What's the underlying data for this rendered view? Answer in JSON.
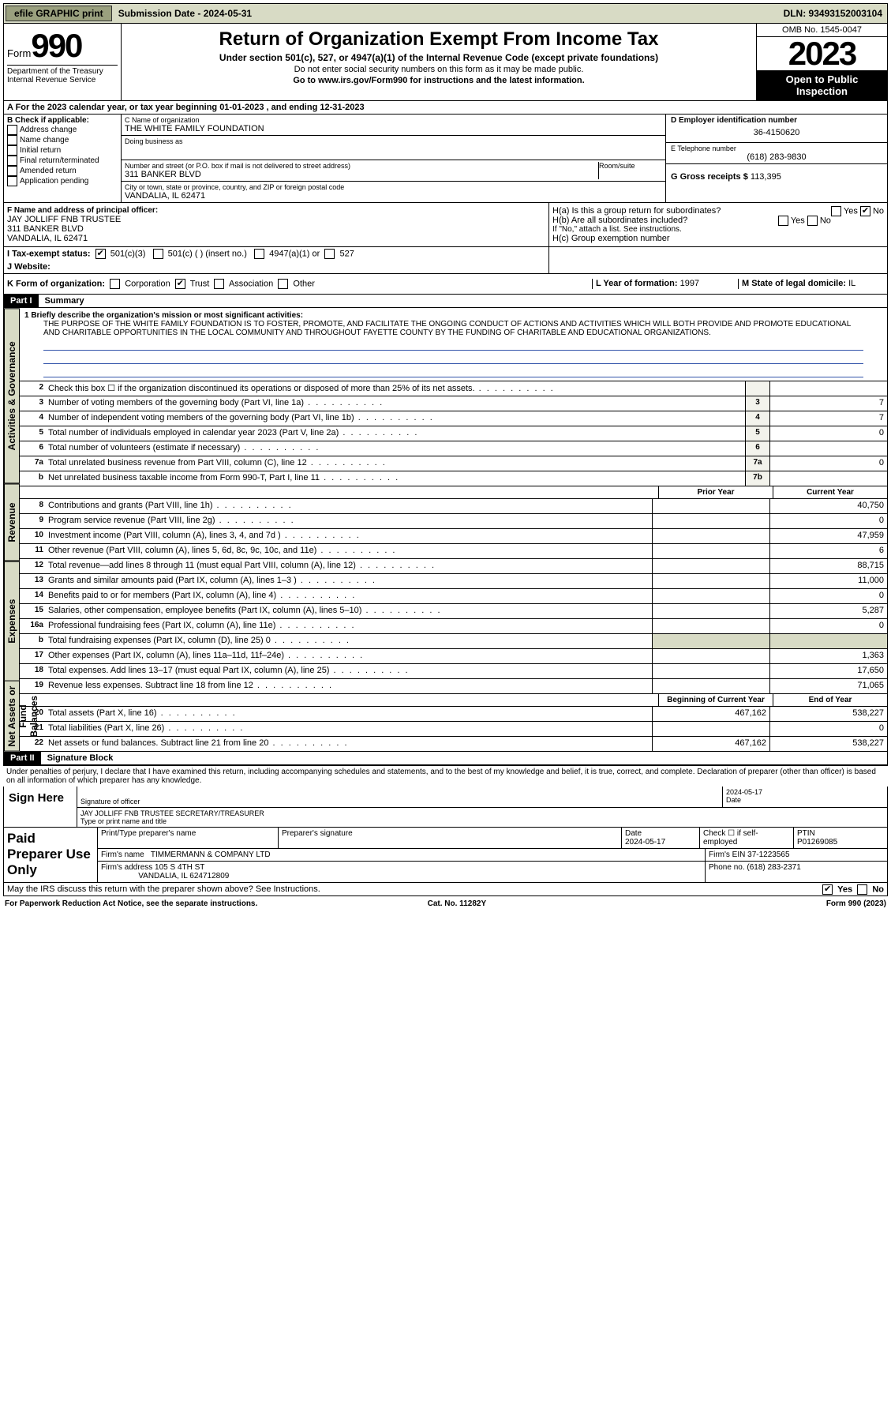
{
  "topbar": {
    "efile": "efile GRAPHIC print",
    "sub_label": "Submission Date - 2024-05-31",
    "dln": "DLN: 93493152003104"
  },
  "header": {
    "form_word": "Form",
    "form_num": "990",
    "title": "Return of Organization Exempt From Income Tax",
    "sub1": "Under section 501(c), 527, or 4947(a)(1) of the Internal Revenue Code (except private foundations)",
    "sub2": "Do not enter social security numbers on this form as it may be made public.",
    "sub3": "Go to www.irs.gov/Form990 for instructions and the latest information.",
    "dept": "Department of the Treasury\nInternal Revenue Service",
    "omb": "OMB No. 1545-0047",
    "year": "2023",
    "inspect": "Open to Public Inspection"
  },
  "sectionA": "A  For the 2023 calendar year, or tax year beginning 01-01-2023   , and ending 12-31-2023",
  "colB": {
    "title": "B Check if applicable:",
    "opts": [
      "Address change",
      "Name change",
      "Initial return",
      "Final return/terminated",
      "Amended return",
      "Application pending"
    ]
  },
  "colC": {
    "name_lbl": "C Name of organization",
    "name": "THE WHITE FAMILY FOUNDATION",
    "dba_lbl": "Doing business as",
    "addr_lbl": "Number and street (or P.O. box if mail is not delivered to street address)",
    "room_lbl": "Room/suite",
    "addr": "311 BANKER BLVD",
    "city_lbl": "City or town, state or province, country, and ZIP or foreign postal code",
    "city": "VANDALIA, IL  62471"
  },
  "colD": {
    "ein_lbl": "D Employer identification number",
    "ein": "36-4150620",
    "tel_lbl": "E Telephone number",
    "tel": "(618) 283-9830",
    "gross_lbl": "G Gross receipts $",
    "gross": "113,395"
  },
  "rowF": {
    "lbl": "F Name and address of principal officer:",
    "name": "JAY JOLLIFF FNB TRUSTEE",
    "addr": "311 BANKER BLVD",
    "city": "VANDALIA, IL  62471"
  },
  "rowH": {
    "ha": "H(a)  Is this a group return for subordinates?",
    "hb": "H(b)  Are all subordinates included?",
    "hb_note": "If \"No,\" attach a list. See instructions.",
    "hc": "H(c)  Group exemption number ",
    "yes": "Yes",
    "no": "No"
  },
  "rowI": {
    "lbl": "I   Tax-exempt status:",
    "o1": "501(c)(3)",
    "o2": "501(c) (   ) (insert no.)",
    "o3": "4947(a)(1) or",
    "o4": "527"
  },
  "rowJ": {
    "lbl": "J   Website:",
    "val": ""
  },
  "rowK": {
    "lbl": "K Form of organization:",
    "o1": "Corporation",
    "o2": "Trust",
    "o3": "Association",
    "o4": "Other",
    "l_lbl": "L Year of formation:",
    "l_val": "1997",
    "m_lbl": "M State of legal domicile:",
    "m_val": "IL"
  },
  "part1": {
    "hdr": "Part I",
    "title": "Summary"
  },
  "mission": {
    "lbl": "1   Briefly describe the organization's mission or most significant activities:",
    "text": "THE PURPOSE OF THE WHITE FAMILY FOUNDATION IS TO FOSTER, PROMOTE, AND FACILITATE THE ONGOING CONDUCT OF ACTIONS AND ACTIVITIES WHICH WILL BOTH PROVIDE AND PROMOTE EDUCATIONAL AND CHARITABLE OPPORTUNITIES IN THE LOCAL COMMUNITY AND THROUGHOUT FAYETTE COUNTY BY THE FUNDING OF CHARITABLE AND EDUCATIONAL ORGANIZATIONS."
  },
  "lines_gov": [
    {
      "n": "2",
      "d": "Check this box ☐  if the organization discontinued its operations or disposed of more than 25% of its net assets.",
      "box": "",
      "a": ""
    },
    {
      "n": "3",
      "d": "Number of voting members of the governing body (Part VI, line 1a)",
      "box": "3",
      "a": "7"
    },
    {
      "n": "4",
      "d": "Number of independent voting members of the governing body (Part VI, line 1b)",
      "box": "4",
      "a": "7"
    },
    {
      "n": "5",
      "d": "Total number of individuals employed in calendar year 2023 (Part V, line 2a)",
      "box": "5",
      "a": "0"
    },
    {
      "n": "6",
      "d": "Total number of volunteers (estimate if necessary)",
      "box": "6",
      "a": ""
    },
    {
      "n": "7a",
      "d": "Total unrelated business revenue from Part VIII, column (C), line 12",
      "box": "7a",
      "a": "0"
    },
    {
      "n": "b",
      "d": "Net unrelated business taxable income from Form 990-T, Part I, line 11",
      "box": "7b",
      "a": ""
    }
  ],
  "col_hdrs": {
    "prior": "Prior Year",
    "current": "Current Year"
  },
  "lines_rev": [
    {
      "n": "8",
      "d": "Contributions and grants (Part VIII, line 1h)",
      "p": "",
      "c": "40,750"
    },
    {
      "n": "9",
      "d": "Program service revenue (Part VIII, line 2g)",
      "p": "",
      "c": "0"
    },
    {
      "n": "10",
      "d": "Investment income (Part VIII, column (A), lines 3, 4, and 7d )",
      "p": "",
      "c": "47,959"
    },
    {
      "n": "11",
      "d": "Other revenue (Part VIII, column (A), lines 5, 6d, 8c, 9c, 10c, and 11e)",
      "p": "",
      "c": "6"
    },
    {
      "n": "12",
      "d": "Total revenue—add lines 8 through 11 (must equal Part VIII, column (A), line 12)",
      "p": "",
      "c": "88,715"
    }
  ],
  "lines_exp": [
    {
      "n": "13",
      "d": "Grants and similar amounts paid (Part IX, column (A), lines 1–3 )",
      "p": "",
      "c": "11,000"
    },
    {
      "n": "14",
      "d": "Benefits paid to or for members (Part IX, column (A), line 4)",
      "p": "",
      "c": "0"
    },
    {
      "n": "15",
      "d": "Salaries, other compensation, employee benefits (Part IX, column (A), lines 5–10)",
      "p": "",
      "c": "5,287"
    },
    {
      "n": "16a",
      "d": "Professional fundraising fees (Part IX, column (A), line 11e)",
      "p": "",
      "c": "0"
    },
    {
      "n": "b",
      "d": "Total fundraising expenses (Part IX, column (D), line 25) 0",
      "p": "—",
      "c": "—"
    },
    {
      "n": "17",
      "d": "Other expenses (Part IX, column (A), lines 11a–11d, 11f–24e)",
      "p": "",
      "c": "1,363"
    },
    {
      "n": "18",
      "d": "Total expenses. Add lines 13–17 (must equal Part IX, column (A), line 25)",
      "p": "",
      "c": "17,650"
    },
    {
      "n": "19",
      "d": "Revenue less expenses. Subtract line 18 from line 12",
      "p": "",
      "c": "71,065"
    }
  ],
  "col_hdrs2": {
    "beg": "Beginning of Current Year",
    "end": "End of Year"
  },
  "lines_net": [
    {
      "n": "20",
      "d": "Total assets (Part X, line 16)",
      "p": "467,162",
      "c": "538,227"
    },
    {
      "n": "21",
      "d": "Total liabilities (Part X, line 26)",
      "p": "",
      "c": "0"
    },
    {
      "n": "22",
      "d": "Net assets or fund balances. Subtract line 21 from line 20",
      "p": "467,162",
      "c": "538,227"
    }
  ],
  "vtabs": {
    "gov": "Activities & Governance",
    "rev": "Revenue",
    "exp": "Expenses",
    "net": "Net Assets or Fund Balances"
  },
  "part2": {
    "hdr": "Part II",
    "title": "Signature Block"
  },
  "perjury": "Under penalties of perjury, I declare that I have examined this return, including accompanying schedules and statements, and to the best of my knowledge and belief, it is true, correct, and complete. Declaration of preparer (other than officer) is based on all information of which preparer has any knowledge.",
  "sign": {
    "here": "Sign Here",
    "sig_lbl": "Signature of officer",
    "date_lbl": "Date",
    "date": "2024-05-17",
    "name": "JAY JOLLIFF FNB TRUSTEE  SECRETARY/TREASURER",
    "name_lbl": "Type or print name and title"
  },
  "paid": {
    "title": "Paid Preparer Use Only",
    "h1": "Print/Type preparer's name",
    "h2": "Preparer's signature",
    "h3": "Date",
    "h3v": "2024-05-17",
    "h4": "Check ☐ if self-employed",
    "h5": "PTIN",
    "h5v": "P01269085",
    "firm_lbl": "Firm's name  ",
    "firm": "TIMMERMANN & COMPANY LTD",
    "ein_lbl": "Firm's EIN ",
    "ein": "37-1223565",
    "addr_lbl": "Firm's address ",
    "addr": "105 S 4TH ST",
    "city": "VANDALIA, IL  624712809",
    "phone_lbl": "Phone no.",
    "phone": "(618) 283-2371"
  },
  "discuss": "May the IRS discuss this return with the preparer shown above? See Instructions.",
  "footer": {
    "l": "For Paperwork Reduction Act Notice, see the separate instructions.",
    "m": "Cat. No. 11282Y",
    "r": "Form 990 (2023)"
  }
}
